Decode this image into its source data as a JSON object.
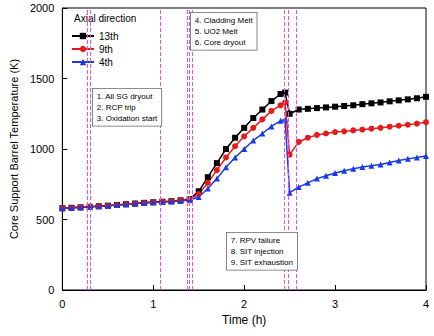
{
  "chart_data": {
    "type": "line",
    "x_label": "Time (h)",
    "y_label": "Core Support Barrel Temperature (K)",
    "legend_title": "Axial direction",
    "legend": "upper left",
    "grid": false,
    "xlim": [
      0,
      4
    ],
    "xticks": [
      0,
      1,
      2,
      3,
      4
    ],
    "ylim": [
      0,
      2000
    ],
    "yticks": [
      0,
      500,
      1000,
      1500,
      2000
    ],
    "x": [
      0,
      0.1,
      0.2,
      0.3,
      0.4,
      0.5,
      0.6,
      0.7,
      0.8,
      0.9,
      1.0,
      1.1,
      1.2,
      1.3,
      1.4,
      1.5,
      1.6,
      1.7,
      1.8,
      1.9,
      2.0,
      2.1,
      2.2,
      2.3,
      2.4,
      2.45,
      2.5,
      2.6,
      2.7,
      2.8,
      2.9,
      3.0,
      3.1,
      3.2,
      3.3,
      3.4,
      3.5,
      3.6,
      3.7,
      3.8,
      3.9,
      4.0
    ],
    "series": [
      {
        "name": "13th",
        "color": "#000000",
        "marker": "square",
        "values": [
          580,
          583,
          586,
          590,
          594,
          598,
          603,
          608,
          613,
          618,
          622,
          626,
          630,
          636,
          645,
          700,
          800,
          900,
          1000,
          1080,
          1150,
          1220,
          1280,
          1340,
          1390,
          1400,
          1250,
          1280,
          1285,
          1290,
          1295,
          1300,
          1305,
          1310,
          1318,
          1324,
          1330,
          1338,
          1345,
          1352,
          1360,
          1370
        ]
      },
      {
        "name": "9th",
        "color": "#e8191a",
        "marker": "circle",
        "values": [
          580,
          583,
          586,
          590,
          594,
          598,
          603,
          608,
          613,
          618,
          622,
          626,
          630,
          635,
          642,
          680,
          760,
          850,
          940,
          1020,
          1090,
          1150,
          1210,
          1270,
          1310,
          1330,
          960,
          1050,
          1080,
          1100,
          1110,
          1120,
          1125,
          1132,
          1138,
          1144,
          1150,
          1158,
          1165,
          1172,
          1180,
          1190
        ]
      },
      {
        "name": "4th",
        "color": "#1a3ae8",
        "marker": "triangle",
        "values": [
          580,
          583,
          586,
          590,
          594,
          598,
          603,
          608,
          613,
          618,
          622,
          625,
          628,
          632,
          638,
          660,
          720,
          790,
          870,
          940,
          1000,
          1060,
          1110,
          1160,
          1200,
          1210,
          690,
          730,
          760,
          790,
          810,
          830,
          845,
          860,
          872,
          882,
          890,
          905,
          918,
          930,
          940,
          950
        ]
      }
    ],
    "annotation_groups": [
      [
        {
          "label": "1. All SG dryout",
          "x": 0.27
        },
        {
          "label": "2. RCP trip",
          "x": 0.31
        },
        {
          "label": "3. Oxidation start",
          "x": 1.08
        }
      ],
      [
        {
          "label": "4. Cladding Melt",
          "x": 1.37
        },
        {
          "label": "5. UO2 Melt",
          "x": 1.4
        },
        {
          "label": "6. Core dryout",
          "x": 1.43
        }
      ],
      [
        {
          "label": "7. RPV failure",
          "x": 2.44
        },
        {
          "label": "8. SIT injection",
          "x": 2.48
        },
        {
          "label": "9. SIT exhaustion",
          "x": 2.57
        }
      ]
    ]
  }
}
